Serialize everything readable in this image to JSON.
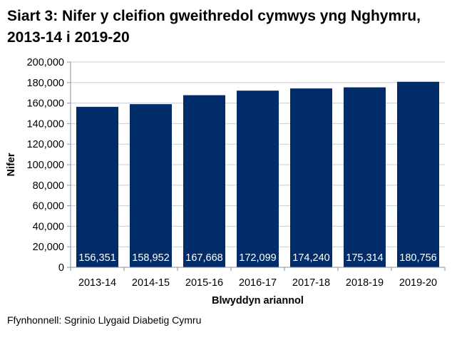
{
  "chart_data": {
    "type": "bar",
    "title": "Siart 3: Nifer y cleifion gweithredol cymwys yng Nghymru, 2013-14 i 2019-20",
    "xlabel": "Blwyddyn ariannol",
    "ylabel": "Nifer",
    "categories": [
      "2013-14",
      "2014-15",
      "2015-16",
      "2016-17",
      "2017-18",
      "2018-19",
      "2019-20"
    ],
    "values": [
      156351,
      158952,
      167668,
      172099,
      174240,
      175314,
      180756
    ],
    "data_labels": [
      "156,351",
      "158,952",
      "167,668",
      "172,099",
      "174,240",
      "175,314",
      "180,756"
    ],
    "ylim": [
      0,
      200000
    ],
    "yticks": [
      0,
      20000,
      40000,
      60000,
      80000,
      100000,
      120000,
      140000,
      160000,
      180000,
      200000
    ],
    "ytick_labels": [
      "0",
      "20,000",
      "40,000",
      "60,000",
      "80,000",
      "100,000",
      "120,000",
      "140,000",
      "160,000",
      "180,000",
      "200,000"
    ],
    "grid": true,
    "legend": "none",
    "colors": {
      "bar": "#002d69",
      "label": "#ffffff",
      "grid": "#c9cbdb"
    }
  },
  "source": "Ffynhonnell: Sgrinio Llygaid Diabetig Cymru"
}
